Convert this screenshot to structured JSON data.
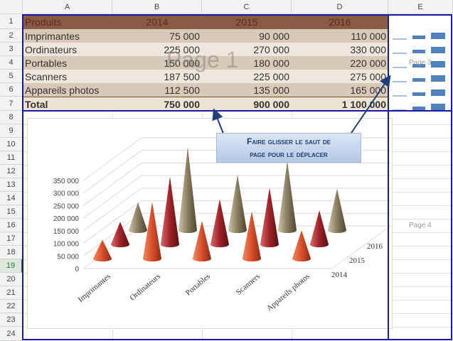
{
  "columns": [
    "A",
    "B",
    "C",
    "D",
    "E"
  ],
  "rows": [
    "1",
    "2",
    "3",
    "4",
    "5",
    "6",
    "7",
    "8",
    "9",
    "10",
    "11",
    "12",
    "13",
    "14",
    "15",
    "16",
    "17",
    "18",
    "19",
    "20",
    "21",
    "22",
    "23",
    "24"
  ],
  "selected_row": "19",
  "table": {
    "header": [
      "Produits",
      "2014",
      "2015",
      "2016"
    ],
    "body": [
      [
        "Imprimantes",
        "75 000",
        "90 000",
        "110 000"
      ],
      [
        "Ordinateurs",
        "225 000",
        "270 000",
        "330 000"
      ],
      [
        "Portables",
        "150 000",
        "180 000",
        "220 000"
      ],
      [
        "Scanners",
        "187 500",
        "225 000",
        "275 000"
      ],
      [
        "Appareils photos",
        "112 500",
        "135 000",
        "165 000"
      ]
    ],
    "total": [
      "Total",
      "750 000",
      "900 000",
      "1 100 000"
    ]
  },
  "page_labels": {
    "page1": "Page 1",
    "page3": "Page 3",
    "page4": "Page 4"
  },
  "callout": {
    "line1": "Faire glisser le saut de",
    "line2": "page pour le déplacer"
  },
  "chart_data": {
    "type": "bar",
    "chart_style": "3d-cone",
    "categories": [
      "Imprimantes",
      "Ordinateurs",
      "Portables",
      "Scanners",
      "Appareils photos"
    ],
    "series": [
      {
        "name": "2014",
        "values": [
          75000,
          225000,
          150000,
          187500,
          112500
        ],
        "color": "#d8502c"
      },
      {
        "name": "2015",
        "values": [
          90000,
          270000,
          180000,
          225000,
          135000
        ],
        "color": "#9e2228"
      },
      {
        "name": "2016",
        "values": [
          110000,
          330000,
          220000,
          275000,
          165000
        ],
        "color": "#8a7c5f"
      }
    ],
    "y_ticks": [
      "0",
      "50 000",
      "100 000",
      "150 000",
      "200 000",
      "250 000",
      "300 000",
      "350 000"
    ],
    "ylim": [
      0,
      350000
    ],
    "grid": true,
    "legend": "none"
  },
  "colors": {
    "page_break": "#1a1aa6",
    "header_band": "#8b5a44",
    "row_dark": "#d9c9b8",
    "row_light": "#efe6dd",
    "callout_text": "#1c3f78"
  }
}
